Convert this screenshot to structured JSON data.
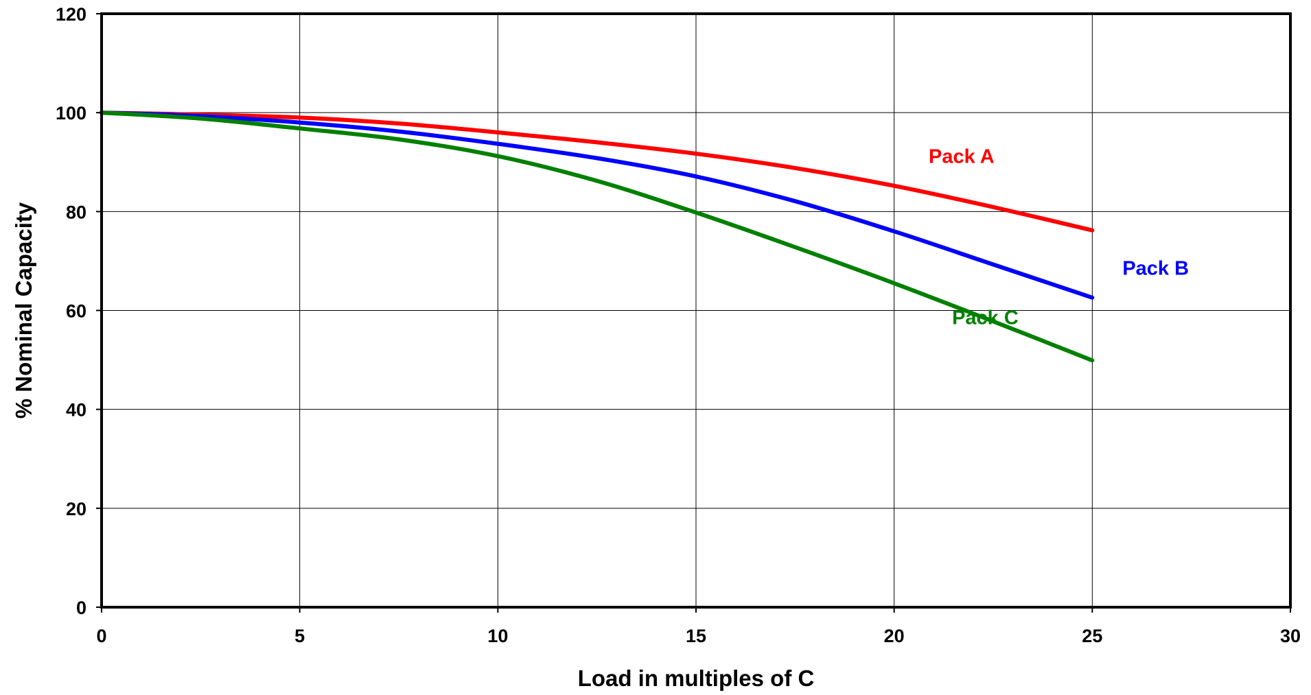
{
  "chart_data": {
    "type": "line",
    "title": "",
    "xlabel": "Load in multiples of C",
    "ylabel": "% Nominal Capacity",
    "xlim": [
      0,
      30
    ],
    "ylim": [
      0,
      120
    ],
    "xticks": [
      0,
      5,
      10,
      15,
      20,
      25,
      30
    ],
    "yticks": [
      0,
      20,
      40,
      60,
      80,
      100,
      120
    ],
    "xtick_labels": [
      "0",
      "5",
      "10",
      "15",
      "20",
      "25",
      "30"
    ],
    "ytick_labels": [
      "0",
      "20",
      "40",
      "60",
      "80",
      "100",
      "120"
    ],
    "grid": true,
    "legend": "inline labels near curves",
    "series": [
      {
        "name": "Pack A",
        "color": "#ff0000",
        "x": [
          0,
          2.5,
          5,
          7.5,
          10,
          12.5,
          15,
          17.5,
          20,
          22.5,
          25
        ],
        "y": [
          100,
          99.6,
          99,
          97.8,
          96,
          94,
          91.7,
          88.8,
          85.2,
          80.9,
          76.2
        ]
      },
      {
        "name": "Pack B",
        "color": "#0000ff",
        "x": [
          0,
          2.5,
          5,
          7.5,
          10,
          12.5,
          15,
          17.5,
          20,
          22.5,
          25
        ],
        "y": [
          100,
          99.3,
          98,
          96.2,
          93.7,
          90.8,
          87.1,
          82.1,
          76,
          69.3,
          62.6
        ]
      },
      {
        "name": "Pack C",
        "color": "#008000",
        "x": [
          0,
          2.5,
          5,
          7.5,
          10,
          12.5,
          15,
          17.5,
          20,
          22.5,
          25
        ],
        "y": [
          100,
          98.8,
          96.8,
          94.6,
          91.2,
          86.2,
          79.8,
          72.8,
          65.5,
          57.8,
          49.9
        ]
      }
    ],
    "annotations": [
      {
        "text": "Pack A",
        "color": "#ff0000",
        "x": 21.7,
        "y": 91.2
      },
      {
        "text": "Pack B",
        "color": "#0000ff",
        "x": 26.6,
        "y": 68.6
      },
      {
        "text": "Pack C",
        "color": "#008000",
        "x": 22.3,
        "y": 58.6
      }
    ]
  }
}
